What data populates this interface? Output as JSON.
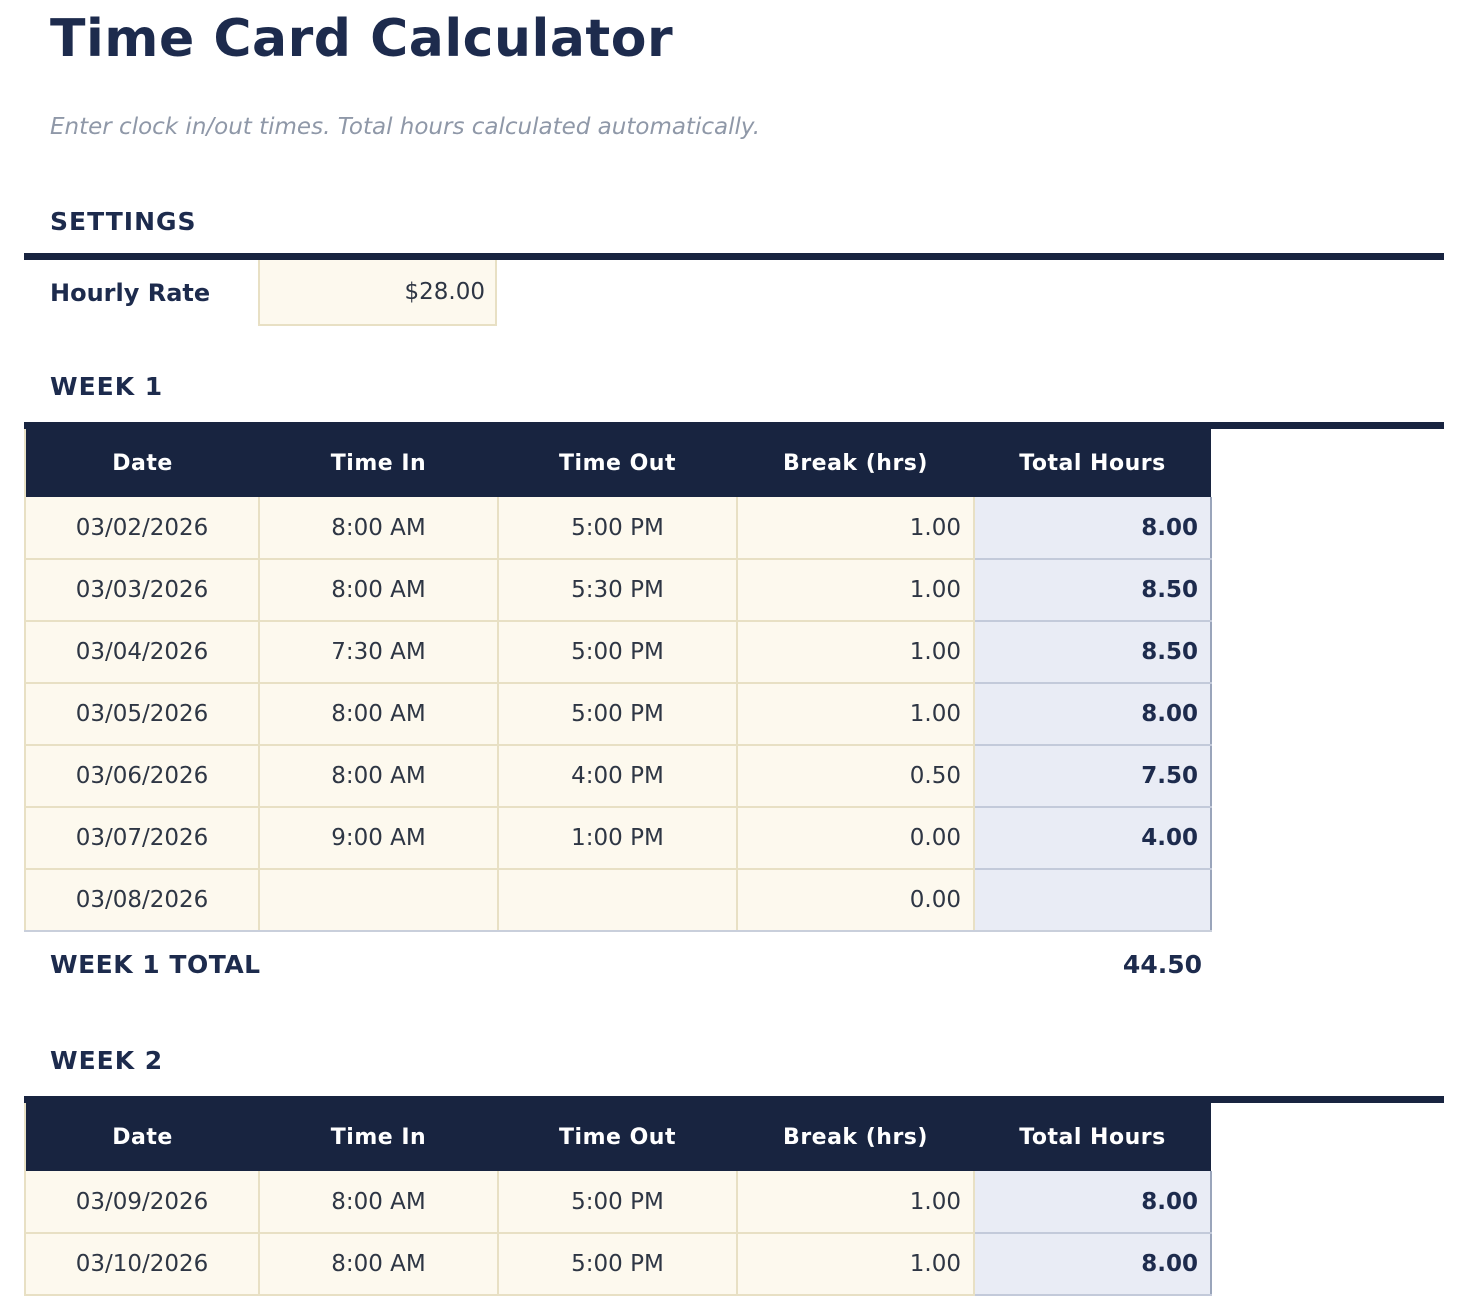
{
  "page": {
    "title": "Time Card Calculator",
    "subtitle": "Enter clock in/out times. Total hours calculated automatically."
  },
  "settings": {
    "heading": "SETTINGS",
    "hourly_rate_label": "Hourly Rate",
    "hourly_rate_value": "$28.00"
  },
  "columns": [
    "Date",
    "Time In",
    "Time Out",
    "Break (hrs)",
    "Total Hours"
  ],
  "week1": {
    "heading": "WEEK 1",
    "rows": [
      [
        "03/02/2026",
        "8:00 AM",
        "5:00 PM",
        "1.00",
        "8.00"
      ],
      [
        "03/03/2026",
        "8:00 AM",
        "5:30 PM",
        "1.00",
        "8.50"
      ],
      [
        "03/04/2026",
        "7:30 AM",
        "5:00 PM",
        "1.00",
        "8.50"
      ],
      [
        "03/05/2026",
        "8:00 AM",
        "5:00 PM",
        "1.00",
        "8.00"
      ],
      [
        "03/06/2026",
        "8:00 AM",
        "4:00 PM",
        "0.50",
        "7.50"
      ],
      [
        "03/07/2026",
        "9:00 AM",
        "1:00 PM",
        "0.00",
        "4.00"
      ],
      [
        "03/08/2026",
        "",
        "",
        "0.00",
        ""
      ]
    ],
    "total_label": "WEEK 1 TOTAL",
    "total_value": "44.50"
  },
  "week2": {
    "heading": "WEEK 2",
    "rows": [
      [
        "03/09/2026",
        "8:00 AM",
        "5:00 PM",
        "1.00",
        "8.00"
      ],
      [
        "03/10/2026",
        "8:00 AM",
        "5:00 PM",
        "1.00",
        "8.00"
      ]
    ]
  },
  "colors": {
    "navy": "#182440",
    "heading_text": "#1d2b4d",
    "cream_cell": "#fdf9ee",
    "cream_border": "#e8e0c4",
    "total_cell": "#e9ecf5",
    "total_border": "#9aa5bb"
  }
}
